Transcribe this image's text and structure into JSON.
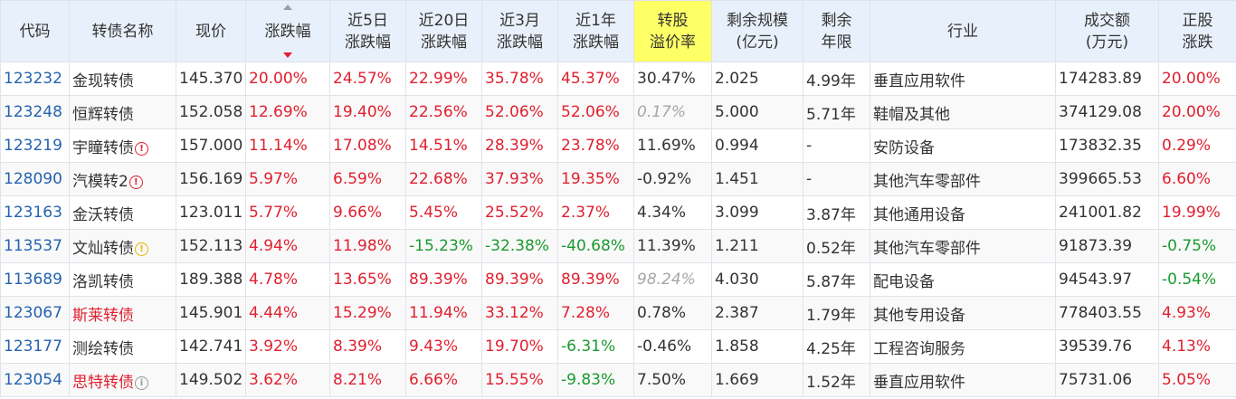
{
  "colors": {
    "up": "#e0202f",
    "down": "#1a9a2e",
    "code": "#2463b0",
    "header_bg": "#e8f0fb",
    "header_highlight": "#ffff66"
  },
  "header": [
    {
      "key": "code",
      "label": [
        "代码"
      ]
    },
    {
      "key": "name",
      "label": [
        "转债名称"
      ]
    },
    {
      "key": "price",
      "label": [
        "现价"
      ]
    },
    {
      "key": "change",
      "label": [
        "涨跌幅"
      ],
      "sorted": "desc"
    },
    {
      "key": "chg5d",
      "label": [
        "近5日",
        "涨跌幅"
      ]
    },
    {
      "key": "chg20d",
      "label": [
        "近20日",
        "涨跌幅"
      ]
    },
    {
      "key": "chg3m",
      "label": [
        "近3月",
        "涨跌幅"
      ]
    },
    {
      "key": "chg1y",
      "label": [
        "近1年",
        "涨跌幅"
      ]
    },
    {
      "key": "premium",
      "label": [
        "转股",
        "溢价率"
      ],
      "highlight": true
    },
    {
      "key": "remain_size",
      "label": [
        "剩余规模",
        "(亿元)"
      ]
    },
    {
      "key": "remain_years",
      "label": [
        "剩余",
        "年限"
      ]
    },
    {
      "key": "industry",
      "label": [
        "行业"
      ]
    },
    {
      "key": "turnover",
      "label": [
        "成交额",
        "(万元)"
      ]
    },
    {
      "key": "stock_change",
      "label": [
        "正股",
        "涨跌"
      ]
    }
  ],
  "rows": [
    {
      "code": "123232",
      "name": "金现转债",
      "name_color": "",
      "icon": "",
      "price": "145.370",
      "change": "20.00%",
      "chg5d": "24.57%",
      "chg20d": "22.99%",
      "chg3m": "35.78%",
      "chg1y": "45.37%",
      "premium": "30.47%",
      "premium_style": "",
      "remain_size": "2.025",
      "remain_years": "4.99年",
      "industry": "垂直应用软件",
      "turnover": "174283.89",
      "stock_change": "20.00%"
    },
    {
      "code": "123248",
      "name": "恒辉转债",
      "name_color": "",
      "icon": "",
      "price": "152.058",
      "change": "12.69%",
      "chg5d": "19.40%",
      "chg20d": "22.56%",
      "chg3m": "52.06%",
      "chg1y": "52.06%",
      "premium": "0.17%",
      "premium_style": "muted",
      "remain_size": "5.000",
      "remain_years": "5.71年",
      "industry": "鞋帽及其他",
      "turnover": "374129.08",
      "stock_change": "20.00%"
    },
    {
      "code": "123219",
      "name": "宇瞳转债",
      "name_color": "",
      "icon": "warn-red",
      "price": "157.000",
      "change": "11.14%",
      "chg5d": "17.08%",
      "chg20d": "14.51%",
      "chg3m": "28.39%",
      "chg1y": "23.78%",
      "premium": "11.69%",
      "premium_style": "",
      "remain_size": "0.994",
      "remain_years": "-",
      "industry": "安防设备",
      "turnover": "173832.35",
      "stock_change": "0.29%"
    },
    {
      "code": "128090",
      "name": "汽模转2",
      "name_color": "",
      "icon": "warn-red",
      "price": "156.169",
      "change": "5.97%",
      "chg5d": "6.59%",
      "chg20d": "22.68%",
      "chg3m": "37.93%",
      "chg1y": "19.35%",
      "premium": "-0.92%",
      "premium_style": "",
      "remain_size": "1.451",
      "remain_years": "-",
      "industry": "其他汽车零部件",
      "turnover": "399665.53",
      "stock_change": "6.60%"
    },
    {
      "code": "123163",
      "name": "金沃转债",
      "name_color": "",
      "icon": "",
      "price": "123.011",
      "change": "5.77%",
      "chg5d": "9.66%",
      "chg20d": "5.45%",
      "chg3m": "25.52%",
      "chg1y": "2.37%",
      "premium": "4.34%",
      "premium_style": "",
      "remain_size": "3.099",
      "remain_years": "3.87年",
      "industry": "其他通用设备",
      "turnover": "241001.82",
      "stock_change": "19.99%"
    },
    {
      "code": "113537",
      "name": "文灿转债",
      "name_color": "",
      "icon": "warn-yellow",
      "price": "152.113",
      "change": "4.94%",
      "chg5d": "11.98%",
      "chg20d": "-15.23%",
      "chg3m": "-32.38%",
      "chg1y": "-40.68%",
      "premium": "11.39%",
      "premium_style": "",
      "remain_size": "1.211",
      "remain_years": "0.52年",
      "industry": "其他汽车零部件",
      "turnover": "91873.39",
      "stock_change": "-0.75%"
    },
    {
      "code": "113689",
      "name": "洛凯转债",
      "name_color": "",
      "icon": "",
      "price": "189.388",
      "change": "4.78%",
      "chg5d": "13.65%",
      "chg20d": "89.39%",
      "chg3m": "89.39%",
      "chg1y": "89.39%",
      "premium": "98.24%",
      "premium_style": "muted",
      "remain_size": "4.030",
      "remain_years": "5.87年",
      "industry": "配电设备",
      "turnover": "94543.97",
      "stock_change": "-0.54%"
    },
    {
      "code": "123067",
      "name": "斯莱转债",
      "name_color": "red",
      "icon": "",
      "price": "145.901",
      "change": "4.44%",
      "chg5d": "15.29%",
      "chg20d": "11.94%",
      "chg3m": "33.12%",
      "chg1y": "7.28%",
      "premium": "0.78%",
      "premium_style": "",
      "remain_size": "2.387",
      "remain_years": "1.79年",
      "industry": "其他专用设备",
      "turnover": "778403.55",
      "stock_change": "4.93%"
    },
    {
      "code": "123177",
      "name": "测绘转债",
      "name_color": "",
      "icon": "",
      "price": "142.741",
      "change": "3.92%",
      "chg5d": "8.39%",
      "chg20d": "9.43%",
      "chg3m": "19.70%",
      "chg1y": "-6.31%",
      "premium": "-0.46%",
      "premium_style": "",
      "remain_size": "1.858",
      "remain_years": "4.25年",
      "industry": "工程咨询服务",
      "turnover": "39539.76",
      "stock_change": "4.13%"
    },
    {
      "code": "123054",
      "name": "思特转债",
      "name_color": "red",
      "icon": "info-gray",
      "price": "149.502",
      "change": "3.62%",
      "chg5d": "8.21%",
      "chg20d": "6.66%",
      "chg3m": "15.55%",
      "chg1y": "-9.83%",
      "premium": "7.50%",
      "premium_style": "",
      "remain_size": "1.669",
      "remain_years": "1.52年",
      "industry": "垂直应用软件",
      "turnover": "75731.06",
      "stock_change": "5.05%"
    }
  ]
}
